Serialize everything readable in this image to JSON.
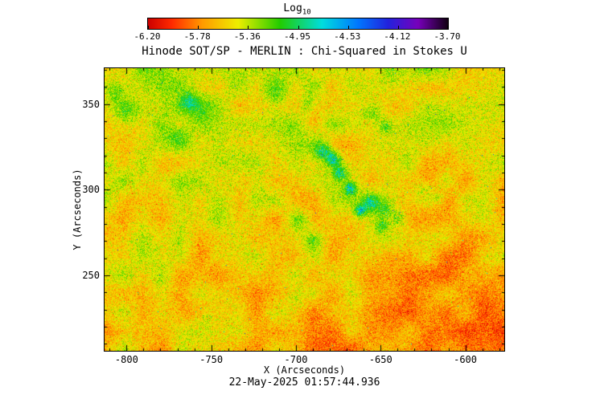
{
  "chart_data": {
    "type": "heatmap",
    "title": "Hinode SOT/SP - MERLIN : Chi-Squared in Stokes U",
    "timestamp": "22-May-2025 01:57:44.936",
    "xlabel": "X (Arcseconds)",
    "ylabel": "Y (Arcseconds)",
    "x_range": [
      -813,
      -577
    ],
    "y_range": [
      206,
      371
    ],
    "x_ticks": [
      -800,
      -750,
      -700,
      -650,
      -600
    ],
    "x_minor_step": 10,
    "y_ticks": [
      250,
      300,
      350
    ],
    "y_minor_step": 10,
    "grid": false,
    "colorbar": {
      "label": "Log",
      "label_subscript": "10",
      "position": "top",
      "min": -6.2,
      "max": -3.7,
      "tick_labels": [
        "-6.20",
        "-5.78",
        "-5.36",
        "-4.95",
        "-4.53",
        "-4.12",
        "-3.70"
      ],
      "stops": [
        {
          "t": 0.0,
          "color": "#cc0000"
        },
        {
          "t": 0.08,
          "color": "#ff2a00"
        },
        {
          "t": 0.18,
          "color": "#ff9900"
        },
        {
          "t": 0.3,
          "color": "#eeee00"
        },
        {
          "t": 0.44,
          "color": "#22cc00"
        },
        {
          "t": 0.58,
          "color": "#00dddd"
        },
        {
          "t": 0.7,
          "color": "#0077ff"
        },
        {
          "t": 0.8,
          "color": "#2222dd"
        },
        {
          "t": 0.9,
          "color": "#7700bb"
        },
        {
          "t": 1.0,
          "color": "#110011"
        }
      ]
    },
    "field": {
      "background_log10": -5.45,
      "speckle_sigma_log10": 0.3,
      "patchiness_log10": 0.22,
      "description": "Speckled chi-squared noise map: predominantly yellow (~10^-5.4) with orange and green speckle, greener toward the upper left, more orange toward the bottom and lower right, with clusters of elevated chi-squared (green/cyan, ~10^-4.8 to 10^-4.4) in a diagonal band near (-665, 300).",
      "features": [
        {
          "x": -684,
          "y": 323,
          "r": 5,
          "boost": 0.8
        },
        {
          "x": -678,
          "y": 318,
          "r": 4,
          "boost": 0.9
        },
        {
          "x": -674,
          "y": 310,
          "r": 4,
          "boost": 0.8
        },
        {
          "x": -668,
          "y": 301,
          "r": 3.5,
          "boost": 0.9
        },
        {
          "x": -662,
          "y": 288,
          "r": 3.5,
          "boost": 1.0
        },
        {
          "x": -656,
          "y": 293,
          "r": 5,
          "boost": 0.7
        },
        {
          "x": -648,
          "y": 288,
          "r": 6,
          "boost": 0.65
        },
        {
          "x": -649,
          "y": 279,
          "r": 4,
          "boost": 0.65
        },
        {
          "x": -640,
          "y": 283,
          "r": 5,
          "boost": 0.6
        },
        {
          "x": -665,
          "y": 300,
          "r": 18,
          "boost": 0.16
        },
        {
          "x": -730,
          "y": 322,
          "r": 10,
          "boost": 0.14
        },
        {
          "x": -715,
          "y": 312,
          "r": 10,
          "boost": 0.14
        },
        {
          "x": -756,
          "y": 340,
          "r": 9,
          "boost": 0.3
        },
        {
          "x": -763,
          "y": 352,
          "r": 5,
          "boost": 0.55
        },
        {
          "x": -770,
          "y": 332,
          "r": 6,
          "boost": 0.28
        },
        {
          "x": -800,
          "y": 345,
          "r": 7,
          "boost": 0.35
        },
        {
          "x": -806,
          "y": 357,
          "r": 5,
          "boost": 0.3
        },
        {
          "x": -712,
          "y": 356,
          "r": 7,
          "boost": 0.3
        },
        {
          "x": -693,
          "y": 350,
          "r": 5,
          "boost": 0.35
        },
        {
          "x": -655,
          "y": 345,
          "r": 6,
          "boost": 0.45
        },
        {
          "x": -647,
          "y": 337,
          "r": 4,
          "boost": 0.5
        },
        {
          "x": -625,
          "y": 301,
          "r": 6,
          "boost": 0.35
        },
        {
          "x": -616,
          "y": 295,
          "r": 4,
          "boost": 0.3
        },
        {
          "x": -737,
          "y": 305,
          "r": 6,
          "boost": 0.25
        },
        {
          "x": -754,
          "y": 226,
          "r": 6,
          "boost": 0.3
        },
        {
          "x": -700,
          "y": 237,
          "r": 5,
          "boost": 0.25
        },
        {
          "x": -690,
          "y": 270,
          "r": 5,
          "boost": 0.35
        },
        {
          "x": -697,
          "y": 282,
          "r": 6,
          "boost": 0.3
        }
      ]
    }
  }
}
